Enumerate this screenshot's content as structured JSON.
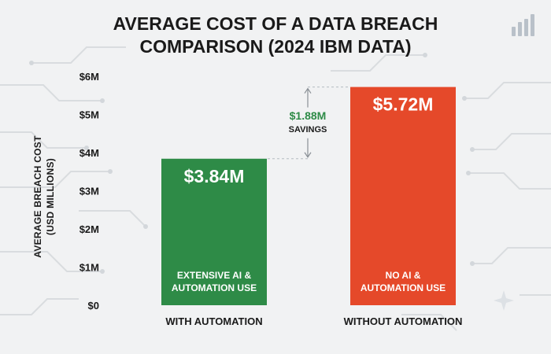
{
  "chart_data": {
    "type": "bar",
    "title_lines": [
      "AVERAGE COST OF A DATA BREACH",
      "COMPARISON (2024 IBM DATA)"
    ],
    "ylabel_lines": [
      "AVERAGE BREACH COST",
      "(USD MILLIONS)"
    ],
    "xlabel": "",
    "ylim": [
      0,
      6
    ],
    "yticks": [
      0,
      1,
      2,
      3,
      4,
      5,
      6
    ],
    "ytick_labels": [
      "$0",
      "$1M",
      "$2M",
      "$3M",
      "$4M",
      "$5M",
      "$6M"
    ],
    "categories": [
      "WITH AUTOMATION",
      "WITHOUT AUTOMATION"
    ],
    "values": [
      3.84,
      5.72
    ],
    "value_labels": [
      "$3.84M",
      "$5.72M"
    ],
    "bar_inner_labels": [
      [
        "EXTENSIVE AI &",
        "AUTOMATION USE"
      ],
      [
        "NO AI &",
        "AUTOMATION USE"
      ]
    ],
    "colors": [
      "#2e8b47",
      "#e5492a"
    ],
    "savings": {
      "value": "$1.88M",
      "label": "SAVINGS"
    },
    "grid": false,
    "legend": "none"
  }
}
